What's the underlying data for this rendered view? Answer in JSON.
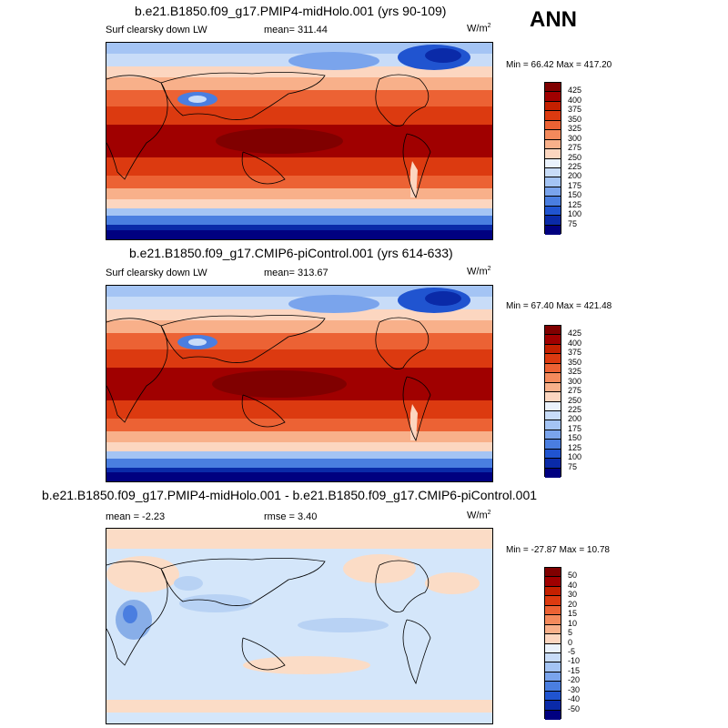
{
  "season": "ANN",
  "units_base": "W/m",
  "units_exp": "2",
  "panels": [
    {
      "title": "b.e21.B1850.f09_g17.PMIP4-midHolo.001 (yrs 90-109)",
      "variable": "Surf clearsky down LW",
      "mean": "mean= 311.44",
      "minmax": "Min =  66.42 Max = 417.20",
      "colorbar": [
        "425",
        "400",
        "375",
        "350",
        "325",
        "300",
        "275",
        "250",
        "225",
        "200",
        "175",
        "150",
        "125",
        "100",
        "75"
      ]
    },
    {
      "title": "b.e21.B1850.f09_g17.CMIP6-piControl.001 (yrs 614-633)",
      "variable": "Surf clearsky down LW",
      "mean": "mean= 313.67",
      "minmax": "Min =  67.40 Max = 421.48",
      "colorbar": [
        "425",
        "400",
        "375",
        "350",
        "325",
        "300",
        "275",
        "250",
        "225",
        "200",
        "175",
        "150",
        "125",
        "100",
        "75"
      ]
    },
    {
      "title": "b.e21.B1850.f09_g17.PMIP4-midHolo.001 - b.e21.B1850.f09_g17.CMIP6-piControl.001",
      "mean": "mean =  -2.23",
      "rmse": "rmse =   3.40",
      "minmax": "Min = -27.87 Max =  10.78",
      "colorbar": [
        "50",
        "40",
        "30",
        "20",
        "15",
        "10",
        "5",
        "0",
        "-5",
        "-10",
        "-15",
        "-20",
        "-30",
        "-40",
        "-50"
      ]
    }
  ],
  "colors": {
    "scale": [
      "#800000",
      "#a00000",
      "#c42000",
      "#dc3a10",
      "#ec6234",
      "#f48a5c",
      "#f8b08a",
      "#fcd6c0",
      "#eaf2fc",
      "#c8dcf8",
      "#a4c4f4",
      "#7aa4ec",
      "#4a7ee0",
      "#2054d0",
      "#0a2aa8",
      "#000080"
    ],
    "diff_land": "#fbdcc6",
    "diff_ocean": "#d4e6fa",
    "diff_blue": "#b8d2f4",
    "diff_blue_dark": "#88aee8"
  }
}
